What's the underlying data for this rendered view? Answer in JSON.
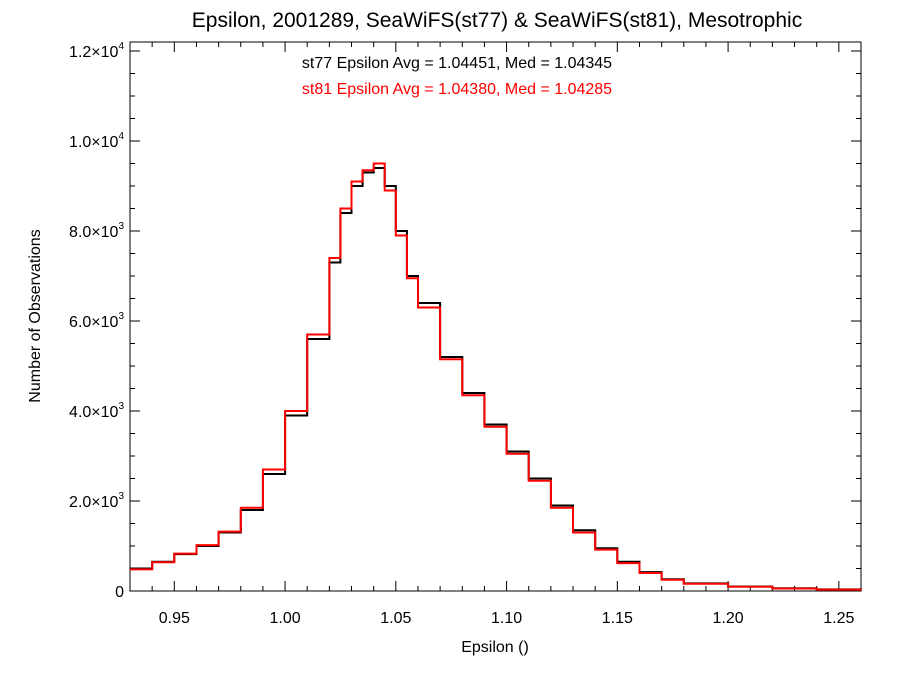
{
  "chart_data": {
    "type": "line",
    "style": "step-histogram",
    "title": "Epsilon, 2001289, SeaWiFS(st77) & SeaWiFS(st81), Mesotrophic",
    "xlabel": "Epsilon ()",
    "ylabel": "Number of Observations",
    "xlim": [
      0.93,
      1.26
    ],
    "ylim": [
      0,
      12200
    ],
    "grid": false,
    "x_ticks": [
      {
        "value": 0.95,
        "label": "0.95"
      },
      {
        "value": 1.0,
        "label": "1.00"
      },
      {
        "value": 1.05,
        "label": "1.05"
      },
      {
        "value": 1.1,
        "label": "1.10"
      },
      {
        "value": 1.15,
        "label": "1.15"
      },
      {
        "value": 1.2,
        "label": "1.20"
      },
      {
        "value": 1.25,
        "label": "1.25"
      }
    ],
    "y_ticks": [
      {
        "value": 0,
        "label": "0"
      },
      {
        "value": 2000,
        "mantissa": "2.0×10",
        "exponent": "3"
      },
      {
        "value": 4000,
        "mantissa": "4.0×10",
        "exponent": "3"
      },
      {
        "value": 6000,
        "mantissa": "6.0×10",
        "exponent": "3"
      },
      {
        "value": 8000,
        "mantissa": "8.0×10",
        "exponent": "3"
      },
      {
        "value": 10000,
        "mantissa": "1.0×10",
        "exponent": "4"
      },
      {
        "value": 12000,
        "mantissa": "1.2×10",
        "exponent": "4"
      }
    ],
    "annotations": [
      {
        "text": "st77 Epsilon Avg = 1.04451, Med = 1.04345",
        "color": "#000000"
      },
      {
        "text": "st81 Epsilon Avg = 1.04380, Med = 1.04285",
        "color": "#ff0000"
      }
    ],
    "series": [
      {
        "color": "#000000",
        "x": [
          0.93,
          0.94,
          0.95,
          0.96,
          0.97,
          0.98,
          0.99,
          1.0,
          1.01,
          1.02,
          1.025,
          1.03,
          1.035,
          1.04,
          1.045,
          1.05,
          1.055,
          1.06,
          1.07,
          1.08,
          1.09,
          1.1,
          1.11,
          1.12,
          1.13,
          1.14,
          1.15,
          1.16,
          1.17,
          1.18,
          1.2,
          1.22,
          1.24,
          1.26
        ],
        "y": [
          500,
          650,
          820,
          1000,
          1300,
          1800,
          2600,
          3900,
          5600,
          7300,
          8400,
          9000,
          9300,
          9400,
          9000,
          8000,
          7000,
          6400,
          5200,
          4400,
          3700,
          3100,
          2500,
          1900,
          1350,
          950,
          650,
          420,
          260,
          170,
          100,
          60,
          35,
          20
        ]
      },
      {
        "color": "#ff0000",
        "x": [
          0.93,
          0.94,
          0.95,
          0.96,
          0.97,
          0.98,
          0.99,
          1.0,
          1.01,
          1.02,
          1.025,
          1.03,
          1.035,
          1.04,
          1.045,
          1.05,
          1.055,
          1.06,
          1.07,
          1.08,
          1.09,
          1.1,
          1.11,
          1.12,
          1.13,
          1.14,
          1.15,
          1.16,
          1.17,
          1.18,
          1.2,
          1.22,
          1.24,
          1.26
        ],
        "y": [
          480,
          640,
          830,
          1020,
          1320,
          1850,
          2700,
          4000,
          5700,
          7400,
          8500,
          9100,
          9350,
          9500,
          8900,
          7900,
          6950,
          6300,
          5150,
          4350,
          3650,
          3050,
          2450,
          1850,
          1300,
          920,
          620,
          400,
          250,
          160,
          95,
          55,
          30,
          15
        ]
      }
    ]
  }
}
